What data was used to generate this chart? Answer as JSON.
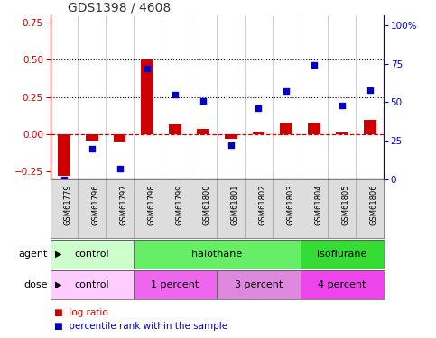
{
  "title": "GDS1398 / 4608",
  "samples": [
    "GSM61779",
    "GSM61796",
    "GSM61797",
    "GSM61798",
    "GSM61799",
    "GSM61800",
    "GSM61801",
    "GSM61802",
    "GSM61803",
    "GSM61804",
    "GSM61805",
    "GSM61806"
  ],
  "log_ratio": [
    -0.28,
    -0.04,
    -0.05,
    0.5,
    0.07,
    0.04,
    -0.03,
    0.02,
    0.08,
    0.08,
    0.01,
    0.1
  ],
  "percentile_rank": [
    0.0,
    0.2,
    0.07,
    0.72,
    0.55,
    0.51,
    0.22,
    0.46,
    0.57,
    0.74,
    0.48,
    0.58
  ],
  "bar_color": "#cc0000",
  "dot_color": "#0000cc",
  "ylim_left": [
    -0.3,
    0.8
  ],
  "ylim_right": [
    0.0,
    1.066
  ],
  "yticks_left": [
    -0.25,
    0.0,
    0.25,
    0.5,
    0.75
  ],
  "yticks_right": [
    0.0,
    0.25,
    0.5,
    0.75,
    1.0
  ],
  "ytick_labels_right": [
    "0",
    "25",
    "50",
    "75",
    "100%"
  ],
  "dotted_lines": [
    0.25,
    0.5
  ],
  "agent_groups": [
    {
      "label": "control",
      "start": 0,
      "end": 3,
      "color": "#ccffcc"
    },
    {
      "label": "halothane",
      "start": 3,
      "end": 9,
      "color": "#66ee66"
    },
    {
      "label": "isoflurane",
      "start": 9,
      "end": 12,
      "color": "#33dd33"
    }
  ],
  "dose_groups": [
    {
      "label": "control",
      "start": 0,
      "end": 3,
      "color": "#ffccff"
    },
    {
      "label": "1 percent",
      "start": 3,
      "end": 6,
      "color": "#ee66ee"
    },
    {
      "label": "3 percent",
      "start": 6,
      "end": 9,
      "color": "#dd88dd"
    },
    {
      "label": "4 percent",
      "start": 9,
      "end": 12,
      "color": "#ee44ee"
    }
  ],
  "legend_log_ratio_color": "#cc0000",
  "legend_pct_color": "#0000cc",
  "background_color": "#ffffff"
}
